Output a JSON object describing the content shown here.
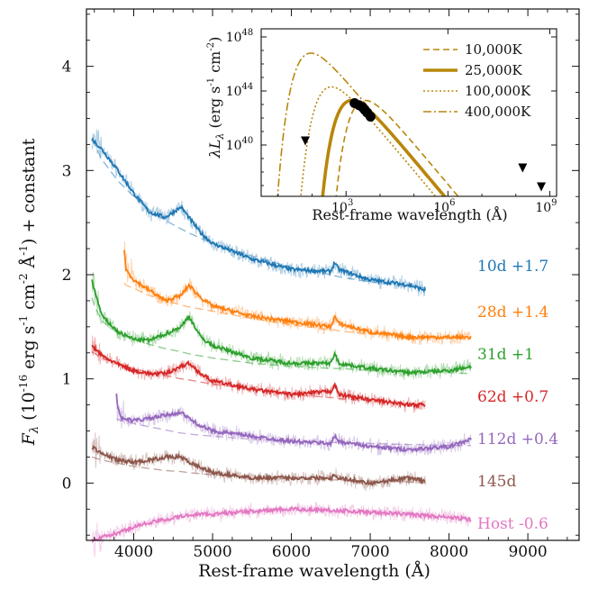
{
  "chart_data": {
    "type": "line",
    "xlabel": "Rest-frame wavelength (Å)",
    "ylabel": "F_λ (10^-16 erg s^-1 cm^-2 Å^-1) + constant",
    "ylabel_parts": {
      "f": "F",
      "lambda": "λ",
      "base": "(10",
      "e16": "-16",
      "erg": "erg s",
      "em1": "-1",
      "cm": "cm",
      "em2": "-2",
      "ang": "Å",
      "em1b": "-1",
      "tail": ") + constant"
    },
    "xlim": [
      3400,
      9650
    ],
    "ylim": [
      -0.55,
      4.55
    ],
    "xticks": [
      4000,
      5000,
      6000,
      7000,
      8000,
      9000
    ],
    "xtick_labels": [
      "4000",
      "5000",
      "6000",
      "7000",
      "8000",
      "9000"
    ],
    "yticks": [
      0,
      1,
      2,
      3,
      4
    ],
    "ytick_labels": [
      "0",
      "1",
      "2",
      "3",
      "4"
    ],
    "series": [
      {
        "name": "10d +1.7",
        "color": "#1f77b4",
        "x": [
          3470,
          3600,
          3800,
          4000,
          4200,
          4400,
          4600,
          4700,
          4850,
          5000,
          5500,
          6000,
          6500,
          6550,
          6600,
          7000,
          7500,
          7700
        ],
        "values": [
          3.3,
          3.2,
          3.0,
          2.78,
          2.6,
          2.55,
          2.65,
          2.55,
          2.4,
          2.3,
          2.15,
          2.05,
          2.03,
          2.12,
          2.05,
          1.95,
          1.9,
          1.85
        ],
        "fit": [
          3.3,
          3.1,
          2.9,
          2.75,
          2.62,
          2.52,
          2.44,
          2.4,
          2.35,
          2.3,
          2.18,
          2.07,
          2.0,
          1.99,
          1.98,
          1.93,
          1.89,
          1.87
        ]
      },
      {
        "name": "28d +1.4",
        "color": "#ff7f0e",
        "x": [
          3880,
          3900,
          4000,
          4200,
          4400,
          4600,
          4700,
          4850,
          5000,
          5500,
          6000,
          6500,
          6550,
          6600,
          7000,
          7500,
          8000,
          8280
        ],
        "values": [
          2.25,
          2.05,
          1.95,
          1.85,
          1.75,
          1.8,
          1.9,
          1.78,
          1.7,
          1.6,
          1.55,
          1.5,
          1.6,
          1.53,
          1.45,
          1.4,
          1.4,
          1.4
        ],
        "fit": [
          1.92,
          1.9,
          1.87,
          1.8,
          1.75,
          1.71,
          1.69,
          1.67,
          1.65,
          1.58,
          1.52,
          1.47,
          1.47,
          1.46,
          1.43,
          1.41,
          1.39,
          1.38
        ]
      },
      {
        "name": "31d +1",
        "color": "#2ca02c",
        "x": [
          3470,
          3500,
          3600,
          3800,
          4000,
          4200,
          4400,
          4600,
          4700,
          4850,
          5000,
          5500,
          6000,
          6500,
          6550,
          6600,
          7000,
          7500,
          8000,
          8280
        ],
        "values": [
          1.95,
          1.85,
          1.6,
          1.45,
          1.38,
          1.37,
          1.43,
          1.5,
          1.6,
          1.4,
          1.32,
          1.2,
          1.15,
          1.15,
          1.25,
          1.15,
          1.1,
          1.06,
          1.08,
          1.12
        ],
        "fit": [
          1.78,
          1.7,
          1.55,
          1.44,
          1.38,
          1.33,
          1.29,
          1.26,
          1.24,
          1.22,
          1.2,
          1.15,
          1.12,
          1.1,
          1.1,
          1.1,
          1.08,
          1.07,
          1.06,
          1.05
        ]
      },
      {
        "name": "62d +0.7",
        "color": "#d62728",
        "x": [
          3470,
          3600,
          3800,
          4000,
          4200,
          4400,
          4600,
          4700,
          4850,
          5000,
          5500,
          6000,
          6500,
          6550,
          6600,
          7000,
          7500,
          7700
        ],
        "values": [
          1.32,
          1.22,
          1.14,
          1.08,
          1.05,
          1.05,
          1.12,
          1.15,
          1.05,
          0.98,
          0.9,
          0.85,
          0.88,
          0.95,
          0.85,
          0.8,
          0.75,
          0.75
        ],
        "fit": [
          1.26,
          1.2,
          1.14,
          1.1,
          1.06,
          1.03,
          1.0,
          0.99,
          0.97,
          0.95,
          0.9,
          0.85,
          0.82,
          0.82,
          0.81,
          0.79,
          0.76,
          0.75
        ]
      },
      {
        "name": "112d +0.4",
        "color": "#9467bd",
        "x": [
          3780,
          3800,
          3850,
          4000,
          4200,
          4400,
          4600,
          4700,
          4850,
          5000,
          5500,
          6000,
          6500,
          6550,
          6600,
          7000,
          7500,
          8000,
          8280
        ],
        "values": [
          0.85,
          0.72,
          0.62,
          0.6,
          0.62,
          0.65,
          0.68,
          0.62,
          0.55,
          0.5,
          0.45,
          0.4,
          0.38,
          0.45,
          0.4,
          0.35,
          0.32,
          0.35,
          0.42
        ],
        "fit": [
          0.62,
          0.61,
          0.6,
          0.57,
          0.54,
          0.51,
          0.48,
          0.47,
          0.46,
          0.45,
          0.42,
          0.4,
          0.39,
          0.39,
          0.39,
          0.38,
          0.37,
          0.36,
          0.36
        ]
      },
      {
        "name": "145d",
        "color": "#8c564b",
        "x": [
          3470,
          3600,
          3800,
          4000,
          4200,
          4400,
          4600,
          4700,
          4850,
          5000,
          5500,
          6000,
          6500,
          6550,
          6600,
          7000,
          7500,
          7700
        ],
        "values": [
          0.35,
          0.28,
          0.22,
          0.2,
          0.22,
          0.25,
          0.25,
          0.2,
          0.15,
          0.1,
          0.05,
          0.05,
          0.05,
          0.08,
          0.05,
          0.0,
          0.05,
          0.02
        ],
        "fit": [
          0.25,
          0.22,
          0.19,
          0.16,
          0.14,
          0.12,
          0.11,
          0.1,
          0.09,
          0.08,
          0.06,
          0.04,
          0.03,
          0.03,
          0.03,
          0.02,
          0.01,
          0.0
        ]
      },
      {
        "name": "Host -0.6",
        "color": "#e377c2",
        "x": [
          3470,
          3600,
          3800,
          4000,
          4200,
          4400,
          4600,
          4800,
          5000,
          5500,
          6000,
          6500,
          7000,
          7500,
          8000,
          8280
        ],
        "values": [
          -0.55,
          -0.52,
          -0.48,
          -0.42,
          -0.38,
          -0.35,
          -0.32,
          -0.3,
          -0.3,
          -0.27,
          -0.25,
          -0.26,
          -0.28,
          -0.3,
          -0.33,
          -0.35
        ]
      }
    ],
    "inset": {
      "xlabel": "Rest-frame wavelength (Å)",
      "ylabel": "λL_λ (erg s^-1 cm^-2)",
      "ylabel_parts": {
        "l": "λL",
        "sub": "λ",
        "open": " (erg s",
        "em1": "-1",
        "cm": " cm",
        "em2": "-2",
        "close": ")"
      },
      "xlim_log10": [
        0.5,
        9.2
      ],
      "ylim_log10": [
        36.2,
        48.6
      ],
      "xticks": [
        {
          "base": "10",
          "exp": "3",
          "log": 3
        },
        {
          "base": "10",
          "exp": "6",
          "log": 6
        },
        {
          "base": "10",
          "exp": "9",
          "log": 9
        }
      ],
      "yticks": [
        {
          "base": "10",
          "exp": "40",
          "log": 40
        },
        {
          "base": "10",
          "exp": "44",
          "log": 44
        },
        {
          "base": "10",
          "exp": "48",
          "log": 48
        }
      ],
      "legend": [
        {
          "label": "10,000K",
          "temp": 10000,
          "dash": "7,4",
          "width": 1.6
        },
        {
          "label": "25,000K",
          "temp": 25000,
          "dash": "",
          "width": 3.6
        },
        {
          "label": "100,000K",
          "temp": 100000,
          "dash": "2,2.5",
          "width": 1.6
        },
        {
          "label": "400,000K",
          "temp": 400000,
          "dash": "9,3,2,3",
          "width": 1.6
        }
      ],
      "curve_color": "#b8860b",
      "points": [
        {
          "logx": 3.25,
          "logy": 43.1
        },
        {
          "logx": 3.38,
          "logy": 42.95
        },
        {
          "logx": 3.48,
          "logy": 42.8
        },
        {
          "logx": 3.55,
          "logy": 42.6
        },
        {
          "logx": 3.62,
          "logy": 42.4
        },
        {
          "logx": 3.72,
          "logy": 42.1
        }
      ],
      "upper_limits": [
        {
          "logx": 1.8,
          "logy": 40.3
        },
        {
          "logx": 8.2,
          "logy": 38.3
        },
        {
          "logx": 8.75,
          "logy": 36.9
        }
      ]
    }
  }
}
